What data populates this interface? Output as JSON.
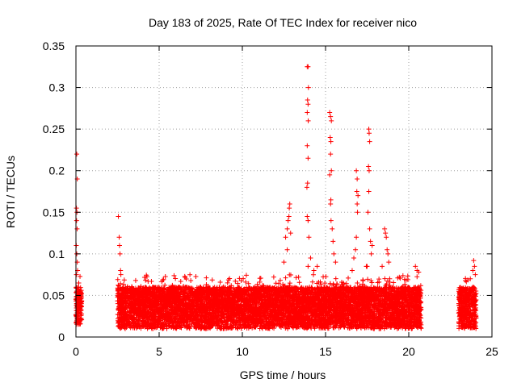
{
  "chart_data": {
    "type": "scatter",
    "title": "Day 183 of 2025, Rate Of TEC Index for receiver nico",
    "xlabel": "GPS time / hours",
    "ylabel": "ROTI / TECUs",
    "xlim": [
      0,
      25
    ],
    "ylim": [
      0,
      0.35
    ],
    "xticks": [
      0,
      5,
      10,
      15,
      20,
      25
    ],
    "yticks": [
      0,
      0.05,
      0.1,
      0.15,
      0.2,
      0.25,
      0.3,
      0.35
    ],
    "grid": true,
    "marker": "+",
    "color": "#ff0000",
    "segments": [
      {
        "x": [
          0.0,
          0.35
        ],
        "low": 0.015,
        "high": 0.06
      },
      {
        "x": [
          2.5,
          20.75
        ],
        "low": 0.01,
        "high": 0.06
      },
      {
        "x": [
          23.0,
          24.05
        ],
        "low": 0.01,
        "high": 0.06
      }
    ],
    "points": [
      [
        0.05,
        0.22
      ],
      [
        0.08,
        0.19
      ],
      [
        0.03,
        0.155
      ],
      [
        0.06,
        0.15
      ],
      [
        0.04,
        0.14
      ],
      [
        0.07,
        0.13
      ],
      [
        0.02,
        0.11
      ],
      [
        0.05,
        0.1
      ],
      [
        0.08,
        0.09
      ],
      [
        0.1,
        0.08
      ],
      [
        0.03,
        0.075
      ],
      [
        2.55,
        0.145
      ],
      [
        2.6,
        0.12
      ],
      [
        2.62,
        0.11
      ],
      [
        2.65,
        0.1
      ],
      [
        2.68,
        0.08
      ],
      [
        2.7,
        0.075
      ],
      [
        12.6,
        0.12
      ],
      [
        12.7,
        0.13
      ],
      [
        12.75,
        0.14
      ],
      [
        12.8,
        0.145
      ],
      [
        12.82,
        0.155
      ],
      [
        12.85,
        0.16
      ],
      [
        12.9,
        0.125
      ],
      [
        12.5,
        0.09
      ],
      [
        12.7,
        0.105
      ],
      [
        13.9,
        0.325
      ],
      [
        13.95,
        0.325
      ],
      [
        13.97,
        0.3
      ],
      [
        13.92,
        0.285
      ],
      [
        13.95,
        0.28
      ],
      [
        13.9,
        0.27
      ],
      [
        13.96,
        0.26
      ],
      [
        13.9,
        0.23
      ],
      [
        13.95,
        0.215
      ],
      [
        13.92,
        0.185
      ],
      [
        13.88,
        0.18
      ],
      [
        13.9,
        0.145
      ],
      [
        13.95,
        0.14
      ],
      [
        14.0,
        0.12
      ],
      [
        13.95,
        0.085
      ],
      [
        14.1,
        0.095
      ],
      [
        14.3,
        0.08
      ],
      [
        14.5,
        0.085
      ],
      [
        15.25,
        0.27
      ],
      [
        15.3,
        0.265
      ],
      [
        15.35,
        0.26
      ],
      [
        15.28,
        0.24
      ],
      [
        15.32,
        0.235
      ],
      [
        15.3,
        0.22
      ],
      [
        15.35,
        0.2
      ],
      [
        15.25,
        0.195
      ],
      [
        15.32,
        0.165
      ],
      [
        15.3,
        0.16
      ],
      [
        15.33,
        0.14
      ],
      [
        15.4,
        0.13
      ],
      [
        15.45,
        0.115
      ],
      [
        15.5,
        0.1
      ],
      [
        15.6,
        0.09
      ],
      [
        16.85,
        0.2
      ],
      [
        16.9,
        0.19
      ],
      [
        16.88,
        0.175
      ],
      [
        16.95,
        0.17
      ],
      [
        16.9,
        0.16
      ],
      [
        16.92,
        0.15
      ],
      [
        16.85,
        0.12
      ],
      [
        16.8,
        0.105
      ],
      [
        16.7,
        0.095
      ],
      [
        16.6,
        0.08
      ],
      [
        17.6,
        0.25
      ],
      [
        17.62,
        0.245
      ],
      [
        17.65,
        0.235
      ],
      [
        17.58,
        0.205
      ],
      [
        17.62,
        0.2
      ],
      [
        17.6,
        0.175
      ],
      [
        17.55,
        0.15
      ],
      [
        17.65,
        0.13
      ],
      [
        17.7,
        0.115
      ],
      [
        17.8,
        0.11
      ],
      [
        17.75,
        0.1
      ],
      [
        17.5,
        0.085
      ],
      [
        17.45,
        0.085
      ],
      [
        18.55,
        0.13
      ],
      [
        18.6,
        0.125
      ],
      [
        18.65,
        0.12
      ],
      [
        18.7,
        0.105
      ],
      [
        18.75,
        0.1
      ],
      [
        18.8,
        0.09
      ],
      [
        18.4,
        0.085
      ],
      [
        20.4,
        0.085
      ],
      [
        20.5,
        0.08
      ],
      [
        20.6,
        0.078
      ],
      [
        23.9,
        0.092
      ],
      [
        23.95,
        0.085
      ],
      [
        23.85,
        0.08
      ],
      [
        24.0,
        0.075
      ],
      [
        23.7,
        0.07
      ]
    ]
  }
}
